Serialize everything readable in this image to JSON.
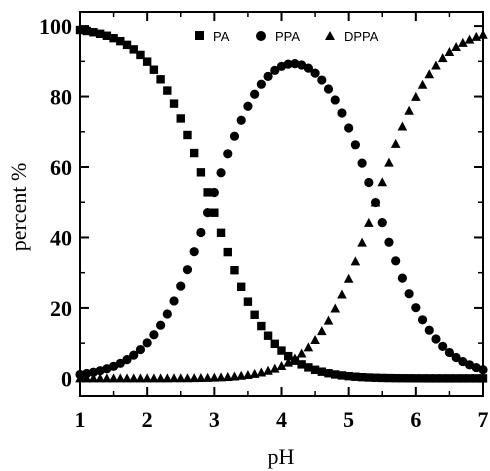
{
  "chart_data": {
    "type": "scatter",
    "title": "",
    "xlabel": "pH",
    "ylabel": "percent %",
    "xlim": [
      1,
      7
    ],
    "ylim": [
      -5,
      104
    ],
    "xticks": [
      "1",
      "2",
      "3",
      "4",
      "5",
      "6",
      "7"
    ],
    "yticks": [
      "0",
      "20",
      "40",
      "60",
      "80",
      "100"
    ],
    "grid": false,
    "legend_position": "top-center",
    "pKa1": 2.95,
    "pKa2": 5.4,
    "x_step": 0.1,
    "series": [
      {
        "name": "PA",
        "marker": "square",
        "color": "#000000"
      },
      {
        "name": "PPA",
        "marker": "circle",
        "color": "#000000"
      },
      {
        "name": "DPPA",
        "marker": "triangle",
        "color": "#000000"
      }
    ]
  }
}
